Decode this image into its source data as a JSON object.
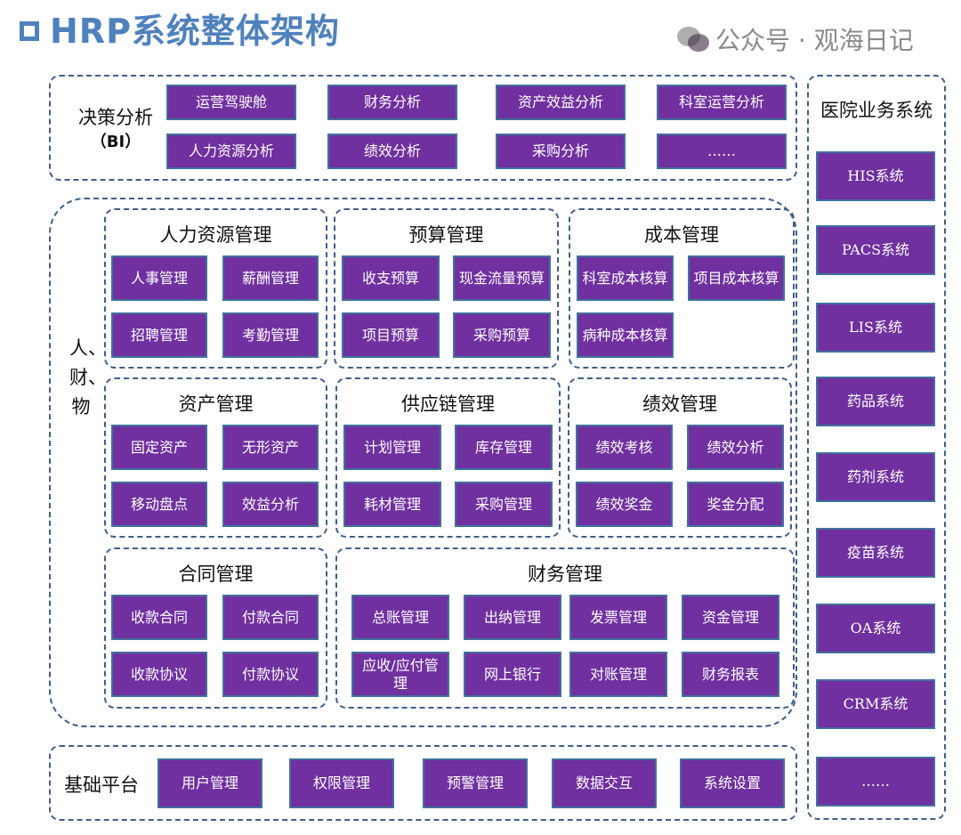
{
  "title": "HRP系统整体架构",
  "bi": {
    "label": "决策分析",
    "sublabel": "（BI）",
    "items": [
      "运营驾驶舱",
      "财务分析",
      "资产效益分析",
      "科室运营分析",
      "人力资源分析",
      "绩效分析",
      "采购分析",
      "……"
    ]
  },
  "core": {
    "label": "人、财、物",
    "panels": [
      {
        "title": "人力资源管理",
        "items": [
          "人事管理",
          "薪酬管理",
          "招聘管理",
          "考勤管理"
        ]
      },
      {
        "title": "预算管理",
        "items": [
          "收支预算",
          "现金流量预算",
          "项目预算",
          "采购预算"
        ]
      },
      {
        "title": "成本管理",
        "items": [
          "科室成本核算",
          "项目成本核算",
          "病种成本核算"
        ]
      },
      {
        "title": "资产管理",
        "items": [
          "固定资产",
          "无形资产",
          "移动盘点",
          "效益分析"
        ]
      },
      {
        "title": "供应链管理",
        "items": [
          "计划管理",
          "库存管理",
          "耗材管理",
          "采购管理"
        ]
      },
      {
        "title": "绩效管理",
        "items": [
          "绩效考核",
          "绩效分析",
          "绩效奖金",
          "奖金分配"
        ]
      },
      {
        "title": "合同管理",
        "items": [
          "收款合同",
          "付款合同",
          "收款协议",
          "付款协议"
        ]
      },
      {
        "title": "财务管理",
        "items": [
          "总账管理",
          "出纳管理",
          "发票管理",
          "资金管理",
          "应收/应付管理",
          "网上银行",
          "对账管理",
          "财务报表"
        ]
      }
    ]
  },
  "base": {
    "label": "基础平台",
    "items": [
      "用户管理",
      "权限管理",
      "预警管理",
      "数据交互",
      "系统设置"
    ]
  },
  "hospital": {
    "title": "医院业务系统",
    "items": [
      "HIS系统",
      "PACS系统",
      "LIS系统",
      "药品系统",
      "药剂系统",
      "疫苗系统",
      "OA系统",
      "CRM系统",
      "……"
    ]
  },
  "watermark": "公众号 · 观海日记",
  "colors": {
    "button": "#7030A0",
    "title": "#4F81BD",
    "dash": "#3F5E8A"
  }
}
